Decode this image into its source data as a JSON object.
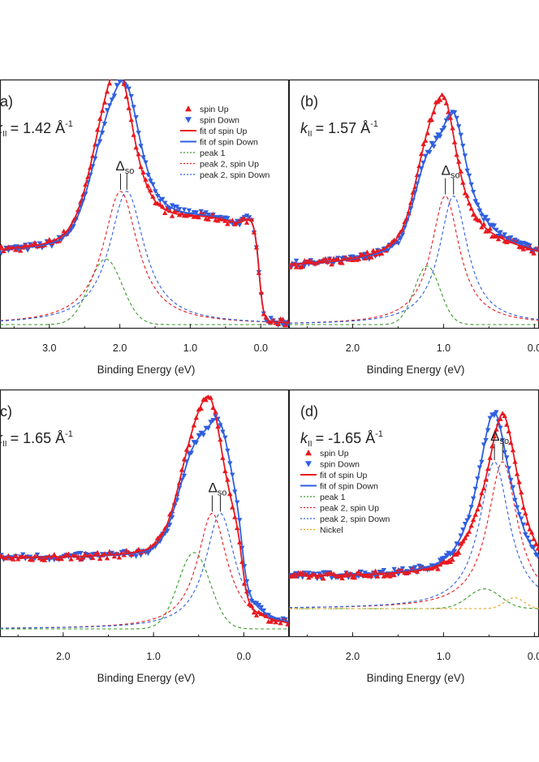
{
  "chart_data": [
    {
      "type": "line",
      "panel": "(a)",
      "k_prefix": "k",
      "k_sub": "II",
      "k_value": "= 1.42 Å",
      "k_sup": "-1",
      "xlabel": "Binding Energy (eV)",
      "xlim": [
        3.7,
        -0.4
      ],
      "xticks": [
        "3.0",
        "2.0",
        "1.0",
        "0.0"
      ],
      "xtick_values": [
        3.0,
        2.0,
        1.0,
        0.0
      ],
      "ylim": [
        0,
        1
      ],
      "delta_so": "Δ",
      "delta_so_sub": "so",
      "legend_position": "top-right",
      "legend": [
        "spin Up",
        "spin Down",
        "fit of spin Up",
        "fit of spin Down",
        "peak 1",
        "peak 2, spin Up",
        "peak 2, spin Down"
      ],
      "params": {
        "bg": 0.305,
        "edge": 0.02,
        "plateau": 0.125,
        "shoulder": 0.04,
        "peak1_center": 2.2,
        "peak1_amp": 0.28,
        "peak1_width": 0.33,
        "peak2_up_center": 1.99,
        "peak2_down_center": 1.9,
        "peak2_amp": 0.57,
        "peak2_width": 0.3
      }
    },
    {
      "type": "line",
      "panel": "(b)",
      "k_prefix": "k",
      "k_sub": "II",
      "k_value": "= 1.57 Å",
      "k_sup": "-1",
      "xlabel": "Binding Energy (eV)",
      "xlim": [
        2.7,
        -0.05
      ],
      "xticks": [
        "2.0",
        "1.0",
        "0.0"
      ],
      "xtick_values": [
        2.0,
        1.0,
        0.0
      ],
      "ylim": [
        0,
        1
      ],
      "delta_so": "Δ",
      "delta_so_sub": "so",
      "legend_position": "none",
      "legend": [],
      "params": {
        "bg": 0.25,
        "edge": -0.2,
        "plateau": 0.08,
        "shoulder": 0.0,
        "peak1_center": 1.18,
        "peak1_amp": 0.25,
        "peak1_width": 0.2,
        "peak2_up_center": 0.98,
        "peak2_down_center": 0.89,
        "peak2_amp": 0.55,
        "peak2_width": 0.19
      }
    },
    {
      "type": "line",
      "panel": "(c)",
      "k_prefix": "k",
      "k_sub": "II",
      "k_value": "= 1.65 Å",
      "k_sup": "-1",
      "xlabel": "Binding Energy (eV)",
      "xlim": [
        2.7,
        -0.5
      ],
      "xticks": [
        "2.0",
        "1.0",
        "0.0"
      ],
      "xtick_values": [
        2.0,
        1.0,
        0.0
      ],
      "ylim": [
        0,
        1
      ],
      "delta_so": "Δ",
      "delta_so_sub": "so",
      "legend_position": "none",
      "legend": [],
      "params": {
        "bg": 0.305,
        "edge": 0.02,
        "plateau": 0.0,
        "shoulder": 0.0,
        "peak1_center": 0.55,
        "peak1_amp": 0.33,
        "peak1_width": 0.25,
        "peak2_up_center": 0.35,
        "peak2_down_center": 0.26,
        "peak2_amp": 0.5,
        "peak2_width": 0.2
      }
    },
    {
      "type": "line",
      "panel": "(d)",
      "k_prefix": "k",
      "k_sub": "II",
      "k_value": "= -1.65 Å",
      "k_sup": "-1",
      "xlabel": "Binding Energy (eV)",
      "xlim": [
        2.7,
        -0.05
      ],
      "xticks": [
        "2.0",
        "1.0",
        "0.0"
      ],
      "xtick_values": [
        2.0,
        1.0,
        0.0
      ],
      "ylim": [
        0,
        1
      ],
      "delta_so": "Δ",
      "delta_so_sub": "so",
      "legend_position": "left",
      "legend": [
        "spin Up",
        "spin Down",
        "fit of spin Up",
        "fit of spin Down",
        "peak 1",
        "peak 2, spin Up",
        "peak 2, spin Down",
        "Nickel"
      ],
      "params": {
        "bg": 0.145,
        "edge": -0.2,
        "plateau": 0.0,
        "shoulder": 0.0,
        "peak1_center": 0.55,
        "peak1_amp": 0.09,
        "peak1_width": 0.25,
        "peak2_up_center": 0.35,
        "peak2_down_center": 0.44,
        "peak2_amp": 0.67,
        "peak2_width": 0.2,
        "nickel_center": 0.22,
        "nickel_amp": 0.05,
        "nickel_width": 0.15
      }
    }
  ],
  "colors": {
    "up": "#e8191f",
    "down": "#2f5fe0",
    "peak1": "#3a9a2a",
    "nickel": "#e8a317",
    "axis": "#222222"
  }
}
